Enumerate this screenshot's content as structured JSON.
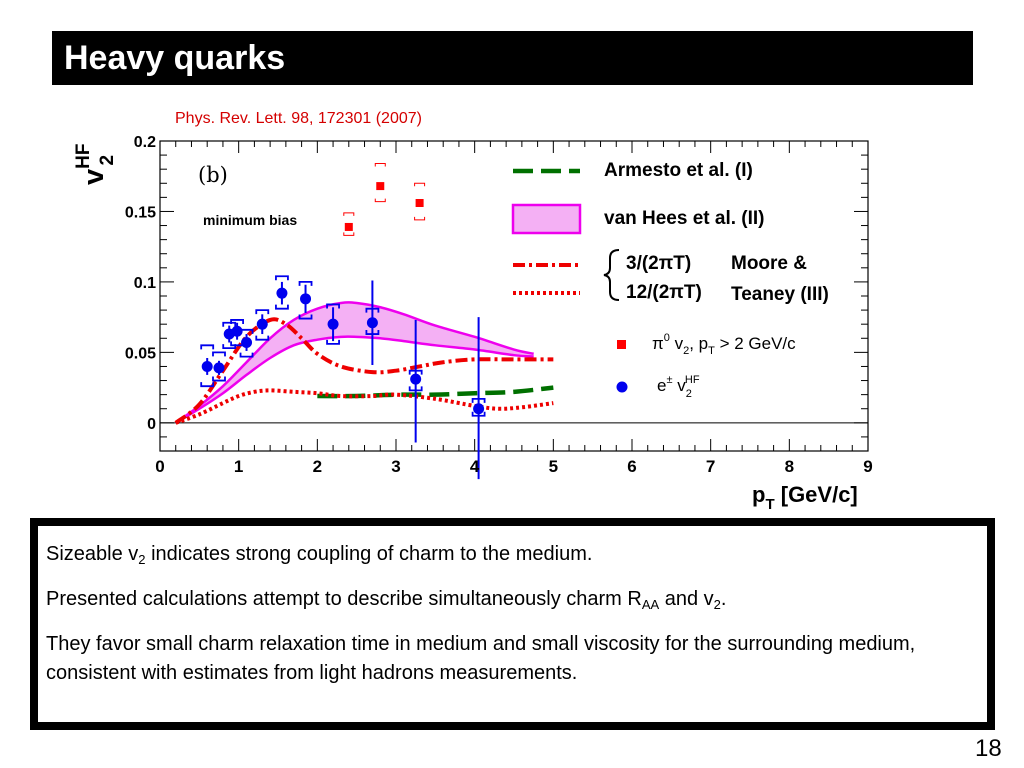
{
  "slide": {
    "title": "Heavy quarks",
    "citation": "Phys. Rev. Lett. 98, 172301 (2007)",
    "page_number": "18",
    "bullets": {
      "p1_a": "Sizeable v",
      "p1_sub": "2",
      "p1_b": " indicates strong coupling of charm to the medium.",
      "p2_a": "Presented calculations attempt to describe simultaneously charm R",
      "p2_sub1": "AA",
      "p2_b": " and v",
      "p2_sub2": "2",
      "p2_c": ".",
      "p3": "They favor small charm relaxation time in medium and small viscosity for the surrounding medium, consistent with estimates from light hadrons measurements."
    }
  },
  "chart_data": {
    "type": "scatter",
    "panel_label": "(b)",
    "annotation": "minimum bias",
    "ylabel_main": "v",
    "ylabel_sup": "HF",
    "ylabel_sub": "2",
    "xlabel_main": "p",
    "xlabel_sub": "T",
    "xlabel_unit": " [GeV/c]",
    "xlim": [
      0,
      9
    ],
    "ylim": [
      -0.02,
      0.2
    ],
    "x_ticks": [
      "0",
      "1",
      "2",
      "3",
      "4",
      "5",
      "6",
      "7",
      "8",
      "9"
    ],
    "y_ticks": [
      "0",
      "0.05",
      "0.1",
      "0.15",
      "0.2"
    ],
    "colors": {
      "pi0": "#ff0000",
      "electron": "#0000ee",
      "armesto": "#007000",
      "vanhees": "#ee00ee",
      "vanhees_fill": "#f4b0f4",
      "moore": "#ee0000"
    },
    "series": [
      {
        "name": "π0 v2, pT > 2 GeV/c",
        "kind": "points",
        "marker": "square",
        "color": "#ff0000",
        "points": [
          {
            "x": 2.4,
            "y": 0.139,
            "lo": 0.133,
            "hi": 0.149
          },
          {
            "x": 2.8,
            "y": 0.168,
            "lo": 0.157,
            "hi": 0.184
          },
          {
            "x": 3.3,
            "y": 0.156,
            "lo": 0.144,
            "hi": 0.17
          }
        ]
      },
      {
        "name": "e± v2HF",
        "kind": "points",
        "marker": "circle",
        "color": "#0000ee",
        "points": [
          {
            "x": 0.6,
            "y": 0.04,
            "lo": 0.034,
            "hi": 0.046,
            "syslo": 0.026,
            "syshi": 0.055
          },
          {
            "x": 0.75,
            "y": 0.039,
            "lo": 0.034,
            "hi": 0.044,
            "syslo": 0.03,
            "syshi": 0.05
          },
          {
            "x": 0.88,
            "y": 0.063,
            "lo": 0.057,
            "hi": 0.069,
            "syslo": 0.053,
            "syshi": 0.071
          },
          {
            "x": 0.98,
            "y": 0.065,
            "lo": 0.059,
            "hi": 0.071,
            "syslo": 0.055,
            "syshi": 0.073
          },
          {
            "x": 1.1,
            "y": 0.057,
            "lo": 0.051,
            "hi": 0.063,
            "syslo": 0.047,
            "syshi": 0.066
          },
          {
            "x": 1.3,
            "y": 0.07,
            "lo": 0.063,
            "hi": 0.077,
            "syslo": 0.059,
            "syshi": 0.08
          },
          {
            "x": 1.55,
            "y": 0.092,
            "lo": 0.084,
            "hi": 0.1,
            "syslo": 0.081,
            "syshi": 0.104
          },
          {
            "x": 1.85,
            "y": 0.088,
            "lo": 0.078,
            "hi": 0.098,
            "syslo": 0.074,
            "syshi": 0.1
          },
          {
            "x": 2.2,
            "y": 0.07,
            "lo": 0.058,
            "hi": 0.082,
            "syslo": 0.056,
            "syshi": 0.084
          },
          {
            "x": 2.7,
            "y": 0.071,
            "lo": 0.041,
            "hi": 0.101,
            "syslo": 0.063,
            "syshi": 0.081
          },
          {
            "x": 3.25,
            "y": 0.031,
            "lo": -0.014,
            "hi": 0.073,
            "syslo": 0.023,
            "syshi": 0.037
          },
          {
            "x": 4.05,
            "y": 0.01,
            "lo": -0.04,
            "hi": 0.075,
            "syslo": 0.005,
            "syshi": 0.017
          }
        ]
      },
      {
        "name": "Armesto et al. (I)",
        "kind": "line",
        "style": "dashed",
        "color": "#007000",
        "x": [
          2,
          2.5,
          3,
          3.5,
          4,
          4.5,
          5
        ],
        "y": [
          0.019,
          0.019,
          0.02,
          0.02,
          0.021,
          0.022,
          0.025
        ]
      },
      {
        "name": "van Hees et al. (II)",
        "kind": "band",
        "color": "#ee00ee",
        "x": [
          0.2,
          0.5,
          0.8,
          1.1,
          1.4,
          1.7,
          2.0,
          2.3,
          2.5,
          2.8,
          3.1,
          3.5,
          4.0,
          4.5,
          4.75
        ],
        "upper": [
          0.0,
          0.012,
          0.026,
          0.043,
          0.06,
          0.073,
          0.081,
          0.085,
          0.085,
          0.082,
          0.077,
          0.069,
          0.061,
          0.052,
          0.049
        ],
        "lower": [
          0.0,
          0.01,
          0.021,
          0.034,
          0.046,
          0.055,
          0.059,
          0.061,
          0.061,
          0.06,
          0.058,
          0.055,
          0.052,
          0.048,
          0.047
        ]
      },
      {
        "name": "3/(2πT)",
        "kind": "line",
        "style": "dashdot",
        "color": "#ee0000",
        "x": [
          0.2,
          0.5,
          0.8,
          1.1,
          1.4,
          1.6,
          1.8,
          2.0,
          2.3,
          2.7,
          3.0,
          3.3,
          3.6,
          4.0,
          4.5,
          5.0
        ],
        "y": [
          0.0,
          0.013,
          0.037,
          0.061,
          0.073,
          0.07,
          0.06,
          0.049,
          0.04,
          0.036,
          0.037,
          0.04,
          0.043,
          0.045,
          0.045,
          0.045
        ]
      },
      {
        "name": "12/(2πT)",
        "kind": "line",
        "style": "dotted",
        "color": "#ee0000",
        "x": [
          0.2,
          0.5,
          0.8,
          1.0,
          1.2,
          1.4,
          1.7,
          2.0,
          2.3,
          2.7,
          3.0,
          3.5,
          4.0,
          4.3,
          4.6,
          5.0
        ],
        "y": [
          0.0,
          0.006,
          0.014,
          0.019,
          0.022,
          0.023,
          0.022,
          0.021,
          0.019,
          0.019,
          0.02,
          0.017,
          0.012,
          0.01,
          0.011,
          0.014
        ]
      }
    ],
    "legend": {
      "armesto": "Armesto et al. (I)",
      "vanhees": "van Hees et al. (II)",
      "moore_a": "3/(2πT)",
      "moore_b": "12/(2πT)",
      "moore_label_1": "Moore &",
      "moore_label_2": "Teaney (III)",
      "pi0_main": "π",
      "pi0_sup": "0",
      "pi0_rest_1": " v",
      "pi0_sub_1": "2",
      "pi0_rest_2": ", p",
      "pi0_sub_2": "T",
      "pi0_rest_3": " > 2 GeV/c",
      "e_main": "e",
      "e_sup": "±",
      "e_rest": " v",
      "e_sub": "2",
      "e_sup2": "HF"
    }
  }
}
